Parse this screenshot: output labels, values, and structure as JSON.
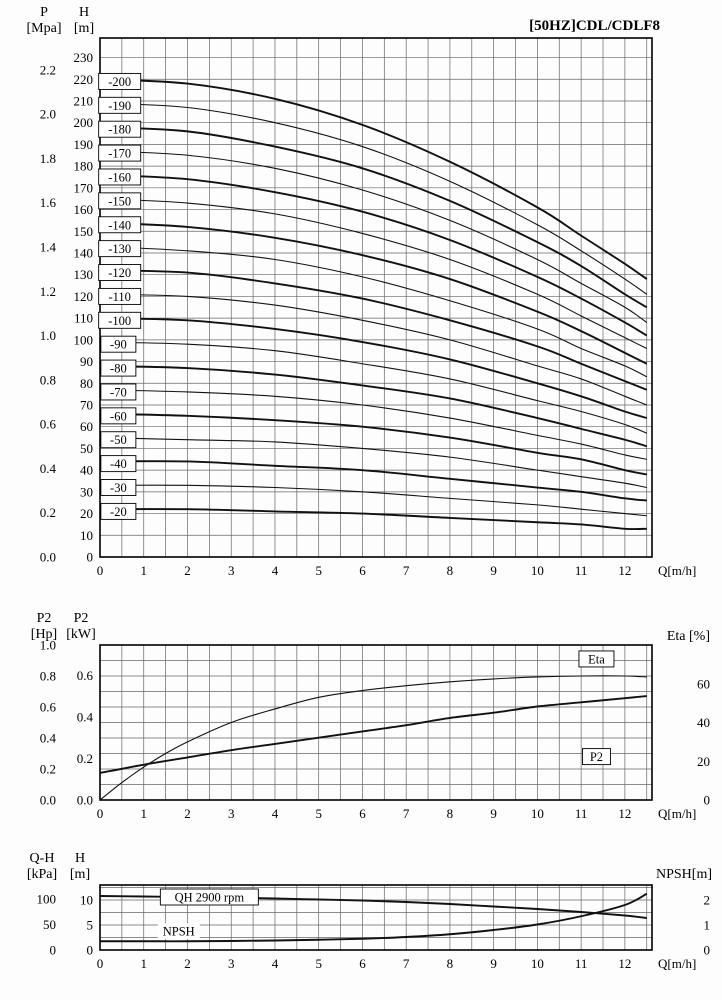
{
  "chart_data": [
    {
      "id": "qh-main",
      "type": "line",
      "title": "[50HZ]CDL/CDLF8",
      "x_axis": {
        "label": "Q[m/h]",
        "min": 0,
        "max": 12.62,
        "grid_step": 0.5,
        "major_ticks": [
          "0",
          "1",
          "2",
          "3",
          "4",
          "5",
          "6",
          "7",
          "8",
          "9",
          "10",
          "11",
          "12"
        ]
      },
      "master_max": 239,
      "grid_step_master": 10,
      "left_outer_axis": {
        "title": [
          "P",
          "[Mpa]"
        ],
        "unit_to_master": 101.97,
        "ticks": [
          "2.2",
          "2.0",
          "1.8",
          "1.6",
          "1.4",
          "1.2",
          "1.0",
          "0.8",
          "0.6",
          "0.4",
          "0.2",
          "0.0"
        ]
      },
      "left_inner_axis": {
        "title": [
          "H",
          "[m]"
        ],
        "unit_to_master": 1,
        "ticks": [
          "230",
          "220",
          "210",
          "200",
          "190",
          "180",
          "170",
          "160",
          "150",
          "140",
          "130",
          "120",
          "110",
          "100",
          "90",
          "80",
          "70",
          "60",
          "50",
          "40",
          "30",
          "20",
          "10",
          "0"
        ]
      },
      "q": [
        0,
        2,
        4,
        6,
        8,
        10,
        11,
        12,
        12.5
      ],
      "series": [
        {
          "name": "-200",
          "axis": "left_inner",
          "bold": true,
          "values": [
            220,
            218,
            211,
            199,
            182,
            161,
            148,
            135,
            128
          ]
        },
        {
          "name": "-190",
          "axis": "left_inner",
          "bold": false,
          "values": [
            209,
            207,
            200,
            189,
            173,
            153,
            141,
            128,
            121
          ]
        },
        {
          "name": "-180",
          "axis": "left_inner",
          "bold": true,
          "values": [
            198,
            196,
            189,
            179,
            164,
            145,
            134,
            121,
            115
          ]
        },
        {
          "name": "-170",
          "axis": "left_inner",
          "bold": false,
          "values": [
            187,
            185,
            179,
            169,
            155,
            137,
            126,
            115,
            108
          ]
        },
        {
          "name": "-160",
          "axis": "left_inner",
          "bold": true,
          "values": [
            176,
            174,
            168,
            159,
            146,
            129,
            119,
            108,
            102
          ]
        },
        {
          "name": "-150",
          "axis": "left_inner",
          "bold": false,
          "values": [
            165,
            163,
            158,
            149,
            137,
            121,
            111,
            101,
            96
          ]
        },
        {
          "name": "-140",
          "axis": "left_inner",
          "bold": true,
          "values": [
            154,
            152,
            147,
            139,
            128,
            113,
            104,
            94,
            89
          ]
        },
        {
          "name": "-130",
          "axis": "left_inner",
          "bold": false,
          "values": [
            143,
            141,
            137,
            129,
            118,
            105,
            96,
            88,
            83
          ]
        },
        {
          "name": "-120",
          "axis": "left_inner",
          "bold": true,
          "values": [
            132,
            131,
            126,
            119,
            109,
            97,
            89,
            81,
            77
          ]
        },
        {
          "name": "-110",
          "axis": "left_inner",
          "bold": false,
          "values": [
            121,
            120,
            116,
            109,
            100,
            88,
            82,
            74,
            70
          ]
        },
        {
          "name": "-100",
          "axis": "left_inner",
          "bold": true,
          "values": [
            110,
            109,
            105,
            99,
            91,
            80,
            74,
            67,
            64
          ]
        },
        {
          "name": "-90",
          "axis": "left_inner",
          "bold": false,
          "values": [
            99,
            98,
            95,
            89,
            82,
            72,
            67,
            61,
            57
          ]
        },
        {
          "name": "-80",
          "axis": "left_inner",
          "bold": true,
          "values": [
            88,
            87,
            84,
            79,
            73,
            64,
            59,
            54,
            51
          ]
        },
        {
          "name": "-70",
          "axis": "left_inner",
          "bold": false,
          "values": [
            77,
            76,
            74,
            70,
            64,
            56,
            52,
            47,
            45
          ]
        },
        {
          "name": "-60",
          "axis": "left_inner",
          "bold": true,
          "values": [
            66,
            65,
            63,
            60,
            55,
            48,
            45,
            40,
            38
          ]
        },
        {
          "name": "-50",
          "axis": "left_inner",
          "bold": false,
          "values": [
            55,
            54,
            53,
            50,
            46,
            40,
            37,
            34,
            32
          ]
        },
        {
          "name": "-40",
          "axis": "left_inner",
          "bold": true,
          "values": [
            44,
            44,
            42,
            40,
            36,
            32,
            30,
            27,
            26
          ]
        },
        {
          "name": "-30",
          "axis": "left_inner",
          "bold": false,
          "values": [
            33,
            33,
            32,
            30,
            27,
            24,
            22,
            20,
            19
          ]
        },
        {
          "name": "-20",
          "axis": "left_inner",
          "bold": true,
          "values": [
            22,
            22,
            21,
            20,
            18,
            16,
            15,
            13,
            13
          ]
        }
      ],
      "curve_labels": [
        {
          "text": "-200",
          "q": 0.45,
          "v": 219,
          "boxed": true
        },
        {
          "text": "-190",
          "q": 0.45,
          "v": 208,
          "boxed": true
        },
        {
          "text": "-180",
          "q": 0.45,
          "v": 197,
          "boxed": true
        },
        {
          "text": "-170",
          "q": 0.45,
          "v": 186,
          "boxed": true
        },
        {
          "text": "-160",
          "q": 0.45,
          "v": 175,
          "boxed": true
        },
        {
          "text": "-150",
          "q": 0.45,
          "v": 164,
          "boxed": true
        },
        {
          "text": "-140",
          "q": 0.45,
          "v": 153,
          "boxed": true
        },
        {
          "text": "-130",
          "q": 0.45,
          "v": 142,
          "boxed": true
        },
        {
          "text": "-120",
          "q": 0.45,
          "v": 131,
          "boxed": true
        },
        {
          "text": "-110",
          "q": 0.45,
          "v": 120,
          "boxed": true
        },
        {
          "text": "-100",
          "q": 0.45,
          "v": 109,
          "boxed": true
        },
        {
          "text": "-90",
          "q": 0.42,
          "v": 98,
          "boxed": true
        },
        {
          "text": "-80",
          "q": 0.42,
          "v": 87,
          "boxed": true
        },
        {
          "text": "-70",
          "q": 0.42,
          "v": 76,
          "boxed": true
        },
        {
          "text": "-60",
          "q": 0.42,
          "v": 65,
          "boxed": true
        },
        {
          "text": "-50",
          "q": 0.42,
          "v": 54,
          "boxed": true
        },
        {
          "text": "-40",
          "q": 0.42,
          "v": 43,
          "boxed": true
        },
        {
          "text": "-30",
          "q": 0.42,
          "v": 32,
          "boxed": true
        },
        {
          "text": "-20",
          "q": 0.42,
          "v": 21,
          "boxed": true
        }
      ]
    },
    {
      "id": "power-eff",
      "type": "line",
      "x_axis": {
        "label": "Q[m/h]",
        "min": 0,
        "max": 12.62,
        "grid_step": 0.5,
        "major_ticks": [
          "0",
          "1",
          "2",
          "3",
          "4",
          "5",
          "6",
          "7",
          "8",
          "9",
          "10",
          "11",
          "12"
        ]
      },
      "master_max": 1.0,
      "grid_step_master": 0.1,
      "left_outer_axis": {
        "title": [
          "P2",
          "[Hp]"
        ],
        "unit_to_master": 1,
        "ticks": [
          "1.0",
          "0.8",
          "0.6",
          "0.4",
          "0.2",
          "0.0"
        ]
      },
      "left_inner_axis": {
        "title": [
          "P2",
          "[kW]"
        ],
        "unit_to_master": 1.3405,
        "ticks": [
          "0.6",
          "0.4",
          "0.2",
          "0.0"
        ]
      },
      "right_axis": {
        "title": "Eta [%]",
        "unit_to_master": 0.0125,
        "ticks": [
          "60",
          "40",
          "20",
          "0"
        ]
      },
      "series": [
        {
          "name": "Eta",
          "axis": "right",
          "bold": false,
          "points": [
            [
              0,
              0
            ],
            [
              0.5,
              9
            ],
            [
              1,
              17
            ],
            [
              1.5,
              24
            ],
            [
              2,
              30
            ],
            [
              3,
              40
            ],
            [
              4,
              47
            ],
            [
              5,
              53
            ],
            [
              6,
              56.5
            ],
            [
              7,
              59
            ],
            [
              8,
              61
            ],
            [
              9,
              62.5
            ],
            [
              10,
              63.5
            ],
            [
              11,
              64
            ],
            [
              12,
              64
            ],
            [
              12.5,
              63.5
            ]
          ]
        },
        {
          "name": "P2",
          "axis": "left_inner",
          "bold": true,
          "points": [
            [
              0,
              0.13
            ],
            [
              1,
              0.17
            ],
            [
              2,
              0.205
            ],
            [
              3,
              0.24
            ],
            [
              4,
              0.27
            ],
            [
              5,
              0.3
            ],
            [
              6,
              0.33
            ],
            [
              7,
              0.36
            ],
            [
              8,
              0.395
            ],
            [
              9,
              0.42
            ],
            [
              10,
              0.45
            ],
            [
              11,
              0.47
            ],
            [
              12,
              0.49
            ],
            [
              12.5,
              0.5
            ]
          ]
        }
      ],
      "curve_labels": [
        {
          "text": "Eta",
          "q": 11.35,
          "v": 0.91,
          "boxed": true
        },
        {
          "text": "P2",
          "q": 11.35,
          "v": 0.28,
          "boxed": true
        }
      ]
    },
    {
      "id": "qh-npsh",
      "type": "line",
      "x_axis": {
        "label": "Q[m/h]",
        "min": 0,
        "max": 12.62,
        "grid_step": 0.5,
        "major_ticks": [
          "0",
          "1",
          "2",
          "3",
          "4",
          "5",
          "6",
          "7",
          "8",
          "9",
          "10",
          "11",
          "12"
        ]
      },
      "master_max": 13,
      "grid_step_master": 2.5,
      "left_outer_axis": {
        "title": [
          "Q-H",
          "[kPa]"
        ],
        "unit_to_master": 0.10197,
        "ticks": [
          "100",
          "50",
          "0"
        ]
      },
      "left_inner_axis": {
        "title": [
          "H",
          "[m]"
        ],
        "unit_to_master": 1,
        "ticks": [
          "10",
          "5",
          "0"
        ]
      },
      "right_axis": {
        "title": "NPSH[m]",
        "unit_to_master": 5,
        "ticks": [
          "2",
          "1",
          "0"
        ]
      },
      "series": [
        {
          "name": "QH",
          "axis": "left_inner",
          "bold": true,
          "points": [
            [
              0,
              10.8
            ],
            [
              1,
              10.7
            ],
            [
              2,
              10.6
            ],
            [
              3,
              10.45
            ],
            [
              4,
              10.3
            ],
            [
              5,
              10.1
            ],
            [
              6,
              9.9
            ],
            [
              7,
              9.6
            ],
            [
              8,
              9.2
            ],
            [
              9,
              8.7
            ],
            [
              10,
              8.2
            ],
            [
              11,
              7.6
            ],
            [
              12,
              6.9
            ],
            [
              12.5,
              6.4
            ]
          ]
        },
        {
          "name": "NPSH",
          "axis": "right",
          "bold": true,
          "points": [
            [
              0,
              0.35
            ],
            [
              1,
              0.35
            ],
            [
              2,
              0.35
            ],
            [
              3,
              0.36
            ],
            [
              4,
              0.38
            ],
            [
              5,
              0.41
            ],
            [
              6,
              0.45
            ],
            [
              7,
              0.52
            ],
            [
              8,
              0.63
            ],
            [
              9,
              0.8
            ],
            [
              10,
              1.02
            ],
            [
              11,
              1.35
            ],
            [
              12,
              1.8
            ],
            [
              12.5,
              2.25
            ]
          ]
        }
      ],
      "curve_labels": [
        {
          "text": "QH  2900 rpm",
          "q": 2.5,
          "v": 10.6,
          "boxed": true
        },
        {
          "text": "NPSH",
          "q": 1.8,
          "v": 3.8,
          "boxed": false
        }
      ]
    }
  ]
}
